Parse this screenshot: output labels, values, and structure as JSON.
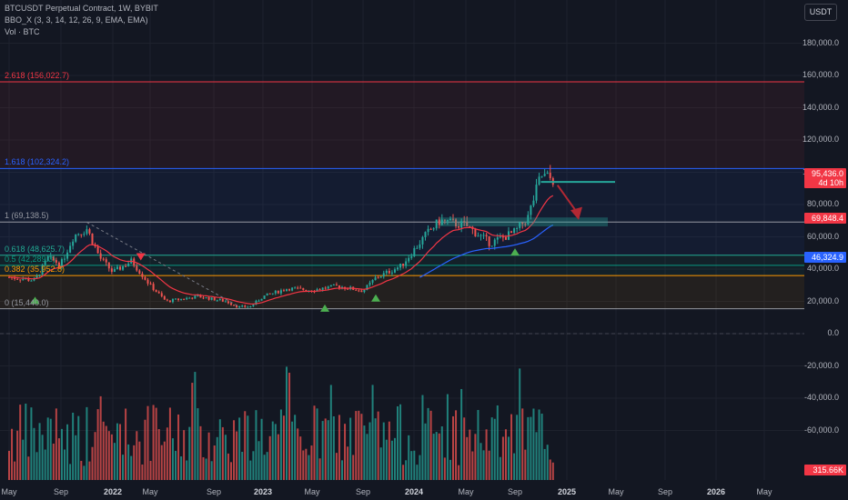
{
  "header": {
    "symbol": "BTCUSDT Perpetual Contract, 1W, BYBIT",
    "indicator": "BBO_X (3, 3, 14, 12, 26, 9, EMA, EMA)",
    "volume": "Vol · BTC"
  },
  "price_scale": {
    "unit_button": "USDT",
    "ticks": [
      "180,000.0",
      "160,000.0",
      "140,000.0",
      "120,000.0",
      "100,000.0",
      "80,000.0",
      "60,000.0",
      "40,000.0",
      "20,000.0",
      "0.0",
      "-20,000.0",
      "-40,000.0",
      "-60,000.0"
    ],
    "badges": {
      "price": "95,436.0",
      "countdown": "4d 10h",
      "level_red": "69,848.4",
      "level_blue": "46,324.9",
      "volume": "315.66K"
    }
  },
  "time_axis": {
    "labels": [
      {
        "t": "May",
        "bold": false
      },
      {
        "t": "Sep",
        "bold": false
      },
      {
        "t": "2022",
        "bold": true
      },
      {
        "t": "May",
        "bold": false
      },
      {
        "t": "Sep",
        "bold": false
      },
      {
        "t": "2023",
        "bold": true
      },
      {
        "t": "May",
        "bold": false
      },
      {
        "t": "Sep",
        "bold": false
      },
      {
        "t": "2024",
        "bold": true
      },
      {
        "t": "May",
        "bold": false
      },
      {
        "t": "Sep",
        "bold": false
      },
      {
        "t": "2025",
        "bold": true
      },
      {
        "t": "May",
        "bold": false
      },
      {
        "t": "Sep",
        "bold": false
      },
      {
        "t": "2026",
        "bold": true
      },
      {
        "t": "May",
        "bold": false
      }
    ]
  },
  "fib_levels": [
    {
      "label": "2.618 (156,022.7)",
      "price": 156022.7,
      "color": "#f23645"
    },
    {
      "label": "1.618 (102,324.2)",
      "price": 102324.2,
      "color": "#2962ff"
    },
    {
      "label": "1 (69,138.5)",
      "price": 69138.5,
      "color": "#9598a1"
    },
    {
      "label": "0.618 (48,625.7)",
      "price": 48625.7,
      "color": "#22ab94"
    },
    {
      "label": "0.5 (42,289.3)",
      "price": 42289.3,
      "color": "#089981"
    },
    {
      "label": "0.382 (35,952.8)",
      "price": 35952.8,
      "color": "#ff9800"
    },
    {
      "label": "0 (15,440.0)",
      "price": 15440.0,
      "color": "#9598a1"
    }
  ],
  "colors": {
    "background": "#131722",
    "up": "#26a69a",
    "down": "#ef5350",
    "ema_red": "#f23645",
    "ema_blue": "#2962ff",
    "grid": "#1e222d"
  },
  "chart_data": {
    "type": "candlestick",
    "symbol": "BTCUSDT Perpetual Contract",
    "interval": "1W",
    "exchange": "BYBIT",
    "ylim": [
      -60000,
      180000
    ],
    "last_price": 95436.0,
    "volume_last": "315.66K",
    "price_path": [
      {
        "x": "2021-05",
        "close": 35000
      },
      {
        "x": "2021-07",
        "close": 33000
      },
      {
        "x": "2021-08",
        "close": 47000
      },
      {
        "x": "2021-09",
        "close": 43000
      },
      {
        "x": "2021-10",
        "close": 61000
      },
      {
        "x": "2021-11",
        "close": 65000
      },
      {
        "x": "2021-12",
        "close": 47000
      },
      {
        "x": "2022-01",
        "close": 38000
      },
      {
        "x": "2022-03",
        "close": 45000
      },
      {
        "x": "2022-05",
        "close": 30000
      },
      {
        "x": "2022-06",
        "close": 20000
      },
      {
        "x": "2022-08",
        "close": 23000
      },
      {
        "x": "2022-10",
        "close": 20000
      },
      {
        "x": "2022-11",
        "close": 16500
      },
      {
        "x": "2022-12",
        "close": 16800
      },
      {
        "x": "2023-01",
        "close": 23000
      },
      {
        "x": "2023-03",
        "close": 28000
      },
      {
        "x": "2023-05",
        "close": 27000
      },
      {
        "x": "2023-07",
        "close": 29500
      },
      {
        "x": "2023-09",
        "close": 26500
      },
      {
        "x": "2023-10",
        "close": 34500
      },
      {
        "x": "2023-12",
        "close": 42000
      },
      {
        "x": "2024-02",
        "close": 62000
      },
      {
        "x": "2024-03",
        "close": 70000
      },
      {
        "x": "2024-05",
        "close": 67000
      },
      {
        "x": "2024-07",
        "close": 56000
      },
      {
        "x": "2024-09",
        "close": 63000
      },
      {
        "x": "2024-10",
        "close": 72000
      },
      {
        "x": "2024-11",
        "close": 98000
      },
      {
        "x": "2024-12",
        "close": 95436
      }
    ],
    "signals": [
      {
        "x": "2021-07",
        "type": "buy"
      },
      {
        "x": "2022-04",
        "type": "sell"
      },
      {
        "x": "2023-06",
        "type": "buy"
      },
      {
        "x": "2023-10",
        "type": "buy"
      },
      {
        "x": "2024-09",
        "type": "buy"
      }
    ]
  }
}
